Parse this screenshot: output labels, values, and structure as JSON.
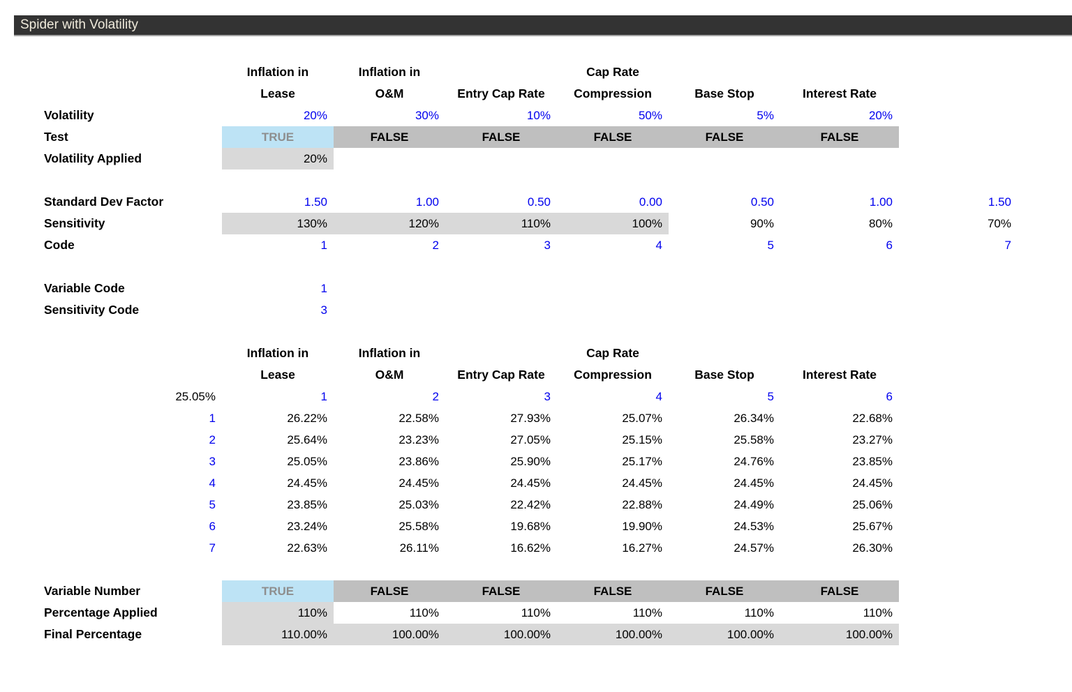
{
  "title": "Spider with Volatility",
  "colors": {
    "title_bar_bg": "#333333",
    "title_text": "#efeadb",
    "input_blue_text": "#0000ee",
    "true_cell_bg": "#bde3f5",
    "true_cell_text": "#8e8e8e",
    "false_cell_bg": "#bfbfbf",
    "shaded_cell_bg": "#d9d9d9"
  },
  "headers": [
    {
      "line1": "Inflation in",
      "line2": "Lease"
    },
    {
      "line1": "Inflation in",
      "line2": "O&M"
    },
    {
      "line1": "",
      "line2": "Entry Cap Rate"
    },
    {
      "line1": "Cap Rate",
      "line2": "Compression"
    },
    {
      "line1": "",
      "line2": "Base Stop"
    },
    {
      "line1": "",
      "line2": "Interest Rate"
    }
  ],
  "volatility": {
    "label": "Volatility",
    "values": [
      "20%",
      "30%",
      "10%",
      "50%",
      "5%",
      "20%"
    ]
  },
  "test": {
    "label": "Test",
    "values": [
      "TRUE",
      "FALSE",
      "FALSE",
      "FALSE",
      "FALSE",
      "FALSE"
    ]
  },
  "volatility_applied": {
    "label": "Volatility Applied",
    "value": "20%"
  },
  "standard_dev_factor": {
    "label": "Standard Dev Factor",
    "values": [
      "1.50",
      "1.00",
      "0.50",
      "0.00",
      "0.50",
      "1.00",
      "1.50"
    ]
  },
  "sensitivity": {
    "label": "Sensitivity",
    "values": [
      "130%",
      "120%",
      "110%",
      "100%",
      "90%",
      "80%",
      "70%"
    ]
  },
  "code": {
    "label": "Code",
    "values": [
      "1",
      "2",
      "3",
      "4",
      "5",
      "6",
      "7"
    ]
  },
  "variable_code": {
    "label": "Variable Code",
    "value": "1"
  },
  "sensitivity_code": {
    "label": "Sensitivity Code",
    "value": "3"
  },
  "spider": {
    "base_value": "25.05%",
    "col_codes": [
      "1",
      "2",
      "3",
      "4",
      "5",
      "6"
    ],
    "rows": [
      {
        "num": "1",
        "values": [
          "26.22%",
          "22.58%",
          "27.93%",
          "25.07%",
          "26.34%",
          "22.68%"
        ]
      },
      {
        "num": "2",
        "values": [
          "25.64%",
          "23.23%",
          "27.05%",
          "25.15%",
          "25.58%",
          "23.27%"
        ]
      },
      {
        "num": "3",
        "values": [
          "25.05%",
          "23.86%",
          "25.90%",
          "25.17%",
          "24.76%",
          "23.85%"
        ]
      },
      {
        "num": "4",
        "values": [
          "24.45%",
          "24.45%",
          "24.45%",
          "24.45%",
          "24.45%",
          "24.45%"
        ]
      },
      {
        "num": "5",
        "values": [
          "23.85%",
          "25.03%",
          "22.42%",
          "22.88%",
          "24.49%",
          "25.06%"
        ]
      },
      {
        "num": "6",
        "values": [
          "23.24%",
          "25.58%",
          "19.68%",
          "19.90%",
          "24.53%",
          "25.67%"
        ]
      },
      {
        "num": "7",
        "values": [
          "22.63%",
          "26.11%",
          "16.62%",
          "16.27%",
          "24.57%",
          "26.30%"
        ]
      }
    ]
  },
  "variable_number": {
    "label": "Variable Number",
    "values": [
      "TRUE",
      "FALSE",
      "FALSE",
      "FALSE",
      "FALSE",
      "FALSE"
    ]
  },
  "percentage_applied": {
    "label": "Percentage Applied",
    "values": [
      "110%",
      "110%",
      "110%",
      "110%",
      "110%",
      "110%"
    ]
  },
  "final_percentage": {
    "label": "Final Percentage",
    "values": [
      "110.00%",
      "100.00%",
      "100.00%",
      "100.00%",
      "100.00%",
      "100.00%"
    ]
  }
}
